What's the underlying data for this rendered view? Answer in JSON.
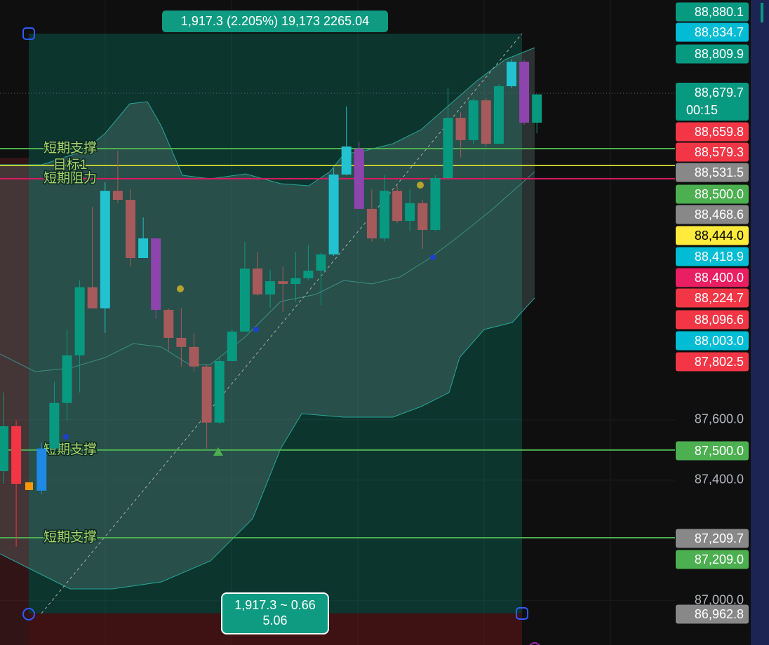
{
  "chart_data": {
    "type": "candlestick",
    "ylim": [
      86853,
      88993
    ],
    "yticks": [
      {
        "value": 87600,
        "label": "87,600.0"
      },
      {
        "value": 87400,
        "label": "87,400.0"
      },
      {
        "value": 87000,
        "label": "87,000.0"
      }
    ],
    "grid": true,
    "open": [
      87430,
      87579,
      null,
      87365,
      87505,
      87656,
      87814,
      88040,
      87970,
      88360,
      88330,
      88137,
      88202,
      87965,
      87872,
      87842,
      87777,
      87591,
      87795,
      87893,
      88102,
      88016,
      88060,
      88051,
      88070,
      88095,
      88149,
      88414,
      88500,
      88300,
      88202,
      88360,
      88260,
      88319,
      88230,
      88402,
      88602,
      88528,
      88660,
      88516,
      88707,
      88788,
      88586
    ],
    "high": [
      87691,
      87598,
      null,
      87523,
      87726,
      87900,
      88063,
      88307,
      88388,
      88493,
      88365,
      88272,
      88202,
      87970,
      87970,
      87888,
      87784,
      87807,
      87900,
      88191,
      88156,
      88098,
      88109,
      88156,
      88179,
      88156,
      88435,
      88640,
      88523,
      88365,
      88412,
      88377,
      88365,
      88330,
      88412,
      88702,
      88621,
      88667,
      88667,
      88714,
      88795,
      88795,
      88680
    ],
    "low": [
      87388,
      87179,
      null,
      87353,
      87493,
      87598,
      87691,
      87970,
      87888,
      88319,
      88109,
      88137,
      87935,
      87830,
      87777,
      87760,
      87505,
      87586,
      87795,
      87893,
      88012,
      87970,
      87958,
      87993,
      88063,
      87981,
      88144,
      88412,
      88300,
      88191,
      88191,
      88253,
      88226,
      88167,
      88226,
      88398,
      88470,
      88516,
      88505,
      88516,
      88702,
      88579,
      88551
    ],
    "close": [
      87579,
      87388,
      null,
      87505,
      87656,
      87814,
      88040,
      87970,
      88360,
      88330,
      88137,
      88202,
      87965,
      87872,
      87842,
      87777,
      87591,
      87795,
      87893,
      88102,
      88016,
      88060,
      88051,
      88070,
      88095,
      88149,
      88414,
      88507,
      88300,
      88202,
      88360,
      88260,
      88319,
      88230,
      88402,
      88602,
      88528,
      88660,
      88516,
      88707,
      88788,
      88586,
      88680
    ],
    "colors": [
      "#089981",
      "#f23645",
      null,
      "#1e88e5",
      "#089981",
      "#089981",
      "#089981",
      "#a65a5c",
      "#22c2d0",
      "#a65a5c",
      "#a65a5c",
      "#22c2d0",
      "#8e44ad",
      "#a65a5c",
      "#a65a5c",
      "#a65a5c",
      "#a65a5c",
      "#089981",
      "#089981",
      "#089981",
      "#a65a5c",
      "#089981",
      "#a65a5c",
      "#089981",
      "#089981",
      "#089981",
      "#22c2d0",
      "#22c2d0",
      "#8e44ad",
      "#a65a5c",
      "#089981",
      "#a65a5c",
      "#089981",
      "#a65a5c",
      "#089981",
      "#089981",
      "#a65a5c",
      "#089981",
      "#a65a5c",
      "#089981",
      "#22c2d0",
      "#8e44ad",
      "#089981"
    ],
    "levels": [
      {
        "label": "短期支撑",
        "value": 88500,
        "color": "#4caf50"
      },
      {
        "label": "目标1",
        "value": 88444,
        "color": "#c0ca33"
      },
      {
        "label": "短期阻力",
        "value": 88400,
        "color": "#d81b60"
      },
      {
        "label": "短期支撑",
        "value": 87500,
        "color": "#4caf50"
      },
      {
        "label": "短期支撑",
        "value": 87209,
        "color": "#4caf50"
      }
    ],
    "price_labels": [
      {
        "value": 88880.1,
        "label": "88,880.1",
        "color": "#089981"
      },
      {
        "value": 88834.7,
        "label": "88,834.7",
        "color": "#00bcd4"
      },
      {
        "value": 88809.9,
        "label": "88,809.9",
        "color": "#089981"
      },
      {
        "value": 88679.7,
        "label": "88,679.7",
        "color": "#089981",
        "countdown": "00:15"
      },
      {
        "value": 88659.8,
        "label": "88,659.8",
        "color": "#f23645"
      },
      {
        "value": 88579.3,
        "label": "88,579.3",
        "color": "#f23645"
      },
      {
        "value": 88531.5,
        "label": "88,531.5",
        "color": "#888888"
      },
      {
        "value": 88500.0,
        "label": "88,500.0",
        "color": "#4caf50"
      },
      {
        "value": 88468.6,
        "label": "88,468.6",
        "color": "#888888"
      },
      {
        "value": 88444.0,
        "label": "88,444.0",
        "color": "#ffeb3b"
      },
      {
        "value": 88418.9,
        "label": "88,418.9",
        "color": "#00bcd4"
      },
      {
        "value": 88400.0,
        "label": "88,400.0",
        "color": "#e91e63"
      },
      {
        "value": 88224.7,
        "label": "88,224.7",
        "color": "#f23645"
      },
      {
        "value": 88096.6,
        "label": "88,096.6",
        "color": "#f23645"
      },
      {
        "value": 88003.0,
        "label": "88,003.0",
        "color": "#00bcd4"
      },
      {
        "value": 87802.5,
        "label": "87,802.5",
        "color": "#f23645"
      },
      {
        "value": 87500.0,
        "label": "87,500.0",
        "color": "#4caf50"
      },
      {
        "value": 87209.7,
        "label": "87,209.7",
        "color": "#888888"
      },
      {
        "value": 87209.0,
        "label": "87,209.0",
        "color": "#4caf50"
      },
      {
        "value": 86962.8,
        "label": "86,962.8",
        "color": "#888888"
      }
    ],
    "measure_top": "1,917.3 (2.205%) 19,173 2265.04",
    "measure_bottom": [
      "1,917.3 ~ 0.66",
      "5.06"
    ]
  }
}
